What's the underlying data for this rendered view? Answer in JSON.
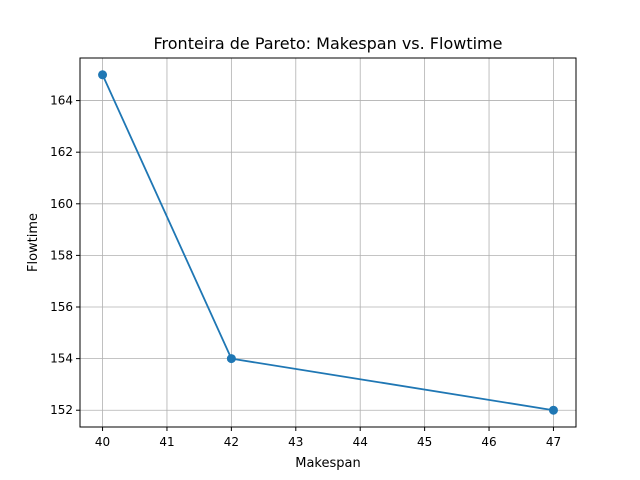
{
  "chart_data": {
    "type": "line",
    "title": "Fronteira de Pareto: Makespan vs. Flowtime",
    "xlabel": "Makespan",
    "ylabel": "Flowtime",
    "xlim": [
      39.65,
      47.35
    ],
    "ylim": [
      151.35,
      165.65
    ],
    "xticks": [
      40,
      41,
      42,
      43,
      44,
      45,
      46,
      47
    ],
    "yticks": [
      152,
      154,
      156,
      158,
      160,
      162,
      164
    ],
    "grid": true,
    "series": [
      {
        "x": [
          40,
          42,
          47
        ],
        "y": [
          165,
          154,
          152
        ],
        "color": "#1f77b4",
        "marker": "circle"
      }
    ]
  }
}
